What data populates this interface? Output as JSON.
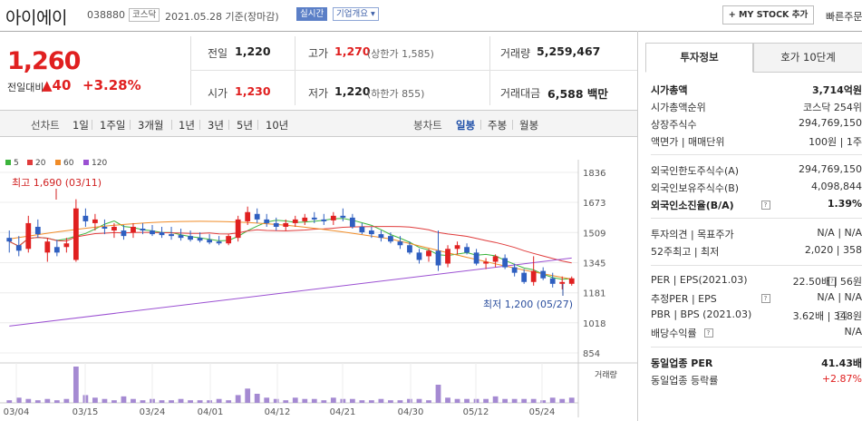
{
  "header": {
    "stock_name": "아이에이",
    "stock_code": "038880",
    "market": "코스닥",
    "date": "2021.05.28 기준(장마감)",
    "realtime": "실시간",
    "overview": "기업개요 ▾",
    "mystock_btn": "+ MY STOCK 추가",
    "quick_order": "빠른주문"
  },
  "price": {
    "current": "1,260",
    "change_label": "전일대비",
    "change": "▲40",
    "change_pct": "+3.28%"
  },
  "stats": {
    "prev_close_label": "전일",
    "prev_close": "1,220",
    "high_label": "고가",
    "high": "1,270",
    "high_sub": "(상한가 1,585)",
    "volume_label": "거래량",
    "volume": "5,259,467",
    "open_label": "시가",
    "open": "1,230",
    "low_label": "저가",
    "low": "1,220",
    "low_sub": "(하한가 855)",
    "amount_label": "거래대금",
    "amount": "6,588 백만"
  },
  "period_bar": {
    "line_chart_label": "선차트",
    "periods": [
      "1일",
      "1주일",
      "3개월",
      "1년",
      "3년",
      "5년",
      "10년"
    ],
    "candle_label": "봉차트",
    "candles": [
      "일봉",
      "주봉",
      "월봉"
    ],
    "active_candle": "일봉"
  },
  "chart_data": {
    "type": "candlestick",
    "ma_legend": [
      {
        "name": "5",
        "color": "#3cb43c"
      },
      {
        "name": "20",
        "color": "#e03c3c"
      },
      {
        "name": "60",
        "color": "#f08c28"
      },
      {
        "name": "120",
        "color": "#9b50d2"
      }
    ],
    "y_ticks": [
      1836,
      1673,
      1509,
      1345,
      1181,
      1018,
      854
    ],
    "ylim": [
      854,
      1836
    ],
    "x_ticks": [
      "03/04",
      "03/15",
      "03/24",
      "04/01",
      "04/12",
      "04/21",
      "04/30",
      "05/12",
      "05/24"
    ],
    "high_note": "최고 1,690 (03/11)",
    "low_note": "최저 1,200 (05/27)",
    "volume_label": "거래량",
    "candles": [
      [
        1480,
        1520,
        1400,
        1460
      ],
      [
        1440,
        1490,
        1380,
        1410
      ],
      [
        1420,
        1600,
        1400,
        1560
      ],
      [
        1540,
        1580,
        1480,
        1500
      ],
      [
        1400,
        1480,
        1350,
        1460
      ],
      [
        1430,
        1470,
        1380,
        1400
      ],
      [
        1430,
        1480,
        1400,
        1450
      ],
      [
        1360,
        1690,
        1350,
        1640
      ],
      [
        1600,
        1640,
        1540,
        1570
      ],
      [
        1560,
        1610,
        1520,
        1580
      ],
      [
        1540,
        1580,
        1500,
        1530
      ],
      [
        1520,
        1560,
        1480,
        1540
      ],
      [
        1520,
        1550,
        1470,
        1490
      ],
      [
        1510,
        1560,
        1480,
        1540
      ],
      [
        1530,
        1560,
        1500,
        1520
      ],
      [
        1520,
        1550,
        1490,
        1500
      ],
      [
        1510,
        1540,
        1480,
        1495
      ],
      [
        1500,
        1540,
        1470,
        1490
      ],
      [
        1495,
        1530,
        1465,
        1480
      ],
      [
        1490,
        1520,
        1460,
        1470
      ],
      [
        1480,
        1510,
        1455,
        1465
      ],
      [
        1470,
        1500,
        1445,
        1455
      ],
      [
        1460,
        1490,
        1440,
        1450
      ],
      [
        1450,
        1500,
        1440,
        1490
      ],
      [
        1480,
        1600,
        1460,
        1580
      ],
      [
        1570,
        1650,
        1550,
        1620
      ],
      [
        1610,
        1640,
        1560,
        1580
      ],
      [
        1580,
        1610,
        1540,
        1560
      ],
      [
        1560,
        1590,
        1520,
        1540
      ],
      [
        1540,
        1580,
        1520,
        1560
      ],
      [
        1560,
        1600,
        1540,
        1580
      ],
      [
        1570,
        1610,
        1550,
        1590
      ],
      [
        1590,
        1620,
        1560,
        1580
      ],
      [
        1580,
        1610,
        1550,
        1570
      ],
      [
        1575,
        1620,
        1550,
        1600
      ],
      [
        1600,
        1640,
        1570,
        1590
      ],
      [
        1590,
        1610,
        1530,
        1540
      ],
      [
        1540,
        1560,
        1500,
        1510
      ],
      [
        1520,
        1540,
        1480,
        1500
      ],
      [
        1500,
        1520,
        1460,
        1480
      ],
      [
        1490,
        1510,
        1450,
        1460
      ],
      [
        1460,
        1490,
        1420,
        1440
      ],
      [
        1440,
        1460,
        1390,
        1400
      ],
      [
        1400,
        1420,
        1340,
        1360
      ],
      [
        1380,
        1420,
        1350,
        1410
      ],
      [
        1410,
        1520,
        1300,
        1330
      ],
      [
        1340,
        1440,
        1320,
        1420
      ],
      [
        1420,
        1460,
        1390,
        1440
      ],
      [
        1430,
        1450,
        1390,
        1400
      ],
      [
        1400,
        1420,
        1330,
        1340
      ],
      [
        1340,
        1370,
        1310,
        1350
      ],
      [
        1350,
        1390,
        1320,
        1380
      ],
      [
        1370,
        1390,
        1310,
        1320
      ],
      [
        1320,
        1340,
        1270,
        1290
      ],
      [
        1290,
        1310,
        1230,
        1240
      ],
      [
        1240,
        1380,
        1220,
        1300
      ],
      [
        1300,
        1320,
        1250,
        1260
      ],
      [
        1260,
        1290,
        1210,
        1230
      ],
      [
        1230,
        1270,
        1200,
        1240
      ],
      [
        1230,
        1270,
        1220,
        1260
      ]
    ],
    "volumes": [
      2,
      4,
      3,
      2,
      3,
      2,
      3,
      28,
      6,
      4,
      3,
      2,
      5,
      3,
      2,
      3,
      2,
      2,
      3,
      2,
      2,
      2,
      3,
      2,
      6,
      11,
      7,
      4,
      3,
      2,
      4,
      3,
      3,
      2,
      4,
      3,
      3,
      2,
      2,
      3,
      2,
      2,
      3,
      3,
      2,
      14,
      4,
      3,
      3,
      3,
      3,
      5,
      3,
      3,
      3,
      3,
      2,
      4,
      3,
      4
    ]
  },
  "right_panel": {
    "tab_invest": "투자정보",
    "tab_quote": "호가 10단계",
    "rows": [
      {
        "l": "시가총액",
        "r": "3,714억원",
        "bold": true
      },
      {
        "l": "시가총액순위",
        "r": "코스닥 254위"
      },
      {
        "l": "상장주식수",
        "r": "294,769,150"
      },
      {
        "l": "액면가 | 매매단위",
        "r": "100원 | 1주"
      },
      {
        "l": "외국인한도주식수(A)",
        "r": "294,769,150"
      },
      {
        "l": "외국인보유주식수(B)",
        "r": "4,098,844"
      },
      {
        "l": "외국인소진율(B/A)",
        "r": "1.39%",
        "bold": true,
        "q": true
      },
      {
        "l": "투자의견 | 목표주가",
        "r": "N/A | N/A"
      },
      {
        "l": "52주최고 | 최저",
        "r": "2,020 | 358"
      },
      {
        "l": "PER | EPS(2021.03)",
        "r": "22.50배 | 56원",
        "q": true
      },
      {
        "l": "추정PER | EPS",
        "r": "N/A | N/A",
        "q": true
      },
      {
        "l": "PBR | BPS (2021.03)",
        "r": "3.62배 | 348원",
        "q": true
      },
      {
        "l": "배당수익률",
        "r": "N/A",
        "q": true
      },
      {
        "l": "동일업종 PER",
        "r": "41.43배",
        "bold": true
      },
      {
        "l": "동일업종 등락률",
        "r": "+2.87%",
        "red": true
      }
    ]
  }
}
